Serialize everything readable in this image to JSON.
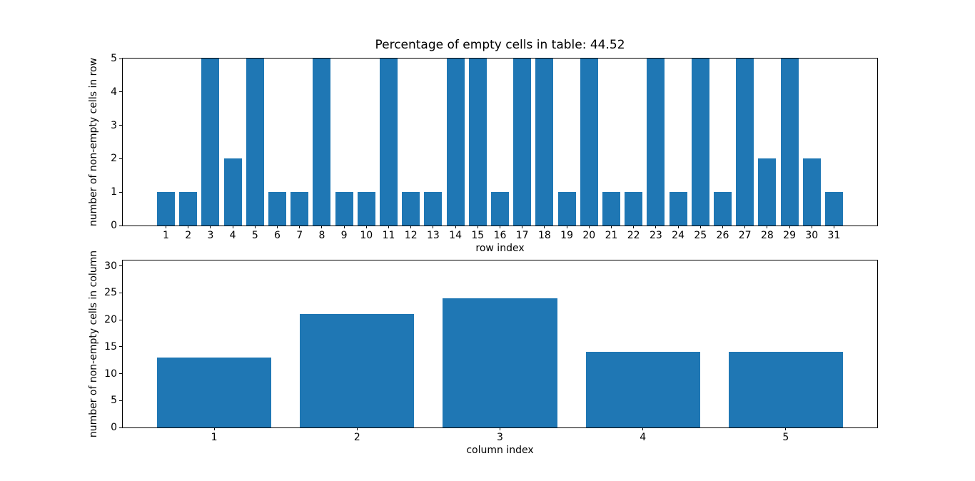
{
  "figure": {
    "background": "#ffffff",
    "bar_color": "#1f77b4",
    "spine_color": "#000000"
  },
  "chart_data": [
    {
      "type": "bar",
      "title": "Percentage of empty cells in table: 44.52",
      "xlabel": "row index",
      "ylabel": "number of non-empty cells in row",
      "x": [
        1,
        2,
        3,
        4,
        5,
        6,
        7,
        8,
        9,
        10,
        11,
        12,
        13,
        14,
        15,
        16,
        17,
        18,
        19,
        20,
        21,
        22,
        23,
        24,
        25,
        26,
        27,
        28,
        29,
        30,
        31
      ],
      "categories": [
        "1",
        "2",
        "3",
        "4",
        "5",
        "6",
        "7",
        "8",
        "9",
        "10",
        "11",
        "12",
        "13",
        "14",
        "15",
        "16",
        "17",
        "18",
        "19",
        "20",
        "21",
        "22",
        "23",
        "24",
        "25",
        "26",
        "27",
        "28",
        "29",
        "30",
        "31"
      ],
      "values": [
        1,
        1,
        5,
        2,
        5,
        1,
        1,
        5,
        1,
        1,
        5,
        1,
        1,
        5,
        5,
        1,
        5,
        5,
        1,
        5,
        1,
        1,
        5,
        1,
        5,
        1,
        5,
        2,
        5,
        2,
        1
      ],
      "bar_width": 0.8,
      "xlim": [
        -0.94,
        32.94
      ],
      "ylim": [
        0,
        5
      ],
      "yticks": [
        0,
        1,
        2,
        3,
        4,
        5
      ],
      "grid": false,
      "legend_visible": false
    },
    {
      "type": "bar",
      "title": "",
      "xlabel": "column index",
      "ylabel": "number of non-empty cells in column",
      "x": [
        1,
        2,
        3,
        4,
        5
      ],
      "categories": [
        "1",
        "2",
        "3",
        "4",
        "5"
      ],
      "values": [
        13,
        21,
        24,
        14,
        14
      ],
      "bar_width": 0.8,
      "xlim": [
        0.36,
        5.64
      ],
      "ylim": [
        0,
        31
      ],
      "yticks": [
        0,
        5,
        10,
        15,
        20,
        25,
        30
      ],
      "grid": false,
      "legend_visible": false
    }
  ]
}
